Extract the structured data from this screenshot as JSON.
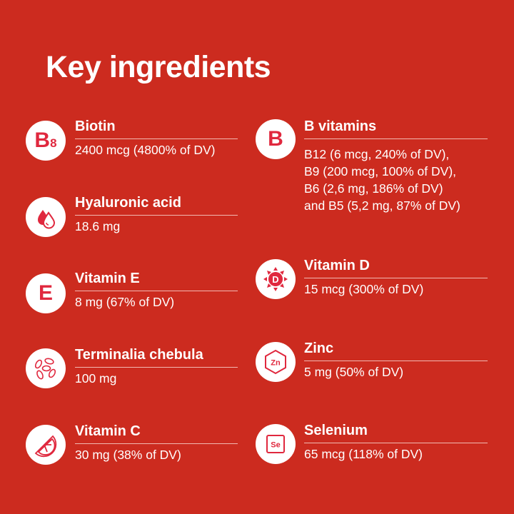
{
  "title": "Key ingredients",
  "colors": {
    "background": "#cc2b1f",
    "icon": "#e0283e"
  },
  "left": [
    {
      "name": "Biotin",
      "value": [
        "2400 mcg (4800% of DV)"
      ],
      "icon": "b8-icon",
      "icon_text": "B",
      "icon_sub": "8"
    },
    {
      "name": "Hyaluronic acid",
      "value": [
        "18.6 mg"
      ],
      "icon": "water-drop-icon"
    },
    {
      "name": "Vitamin E",
      "value": [
        "8 mg (67% of DV)"
      ],
      "icon": "letter-e-icon",
      "icon_text": "E"
    },
    {
      "name": "Terminalia chebula",
      "value": [
        "100 mg"
      ],
      "icon": "seeds-icon"
    },
    {
      "name": "Vitamin C",
      "value": [
        "30 mg (38% of DV)"
      ],
      "icon": "citrus-slice-icon"
    }
  ],
  "right": [
    {
      "name": "B vitamins",
      "value": [
        "B12 (6 mcg, 240% of DV),",
        "B9 (200 mcg, 100% of DV),",
        "B6 (2,6 mg, 186% of DV)",
        "and B5 (5,2 mg, 87% of DV)"
      ],
      "icon": "letter-b-icon",
      "icon_text": "B"
    },
    {
      "name": "Vitamin D",
      "value": [
        "15 mcg (300% of DV)"
      ],
      "icon": "sun-d-icon",
      "icon_text": "D"
    },
    {
      "name": "Zinc",
      "value": [
        "5 mg (50% of DV)"
      ],
      "icon": "zinc-hexagon-icon",
      "icon_text": "Zn"
    },
    {
      "name": "Selenium",
      "value": [
        "65 mcg (118% of DV)"
      ],
      "icon": "selenium-square-icon",
      "icon_text": "Se"
    }
  ]
}
